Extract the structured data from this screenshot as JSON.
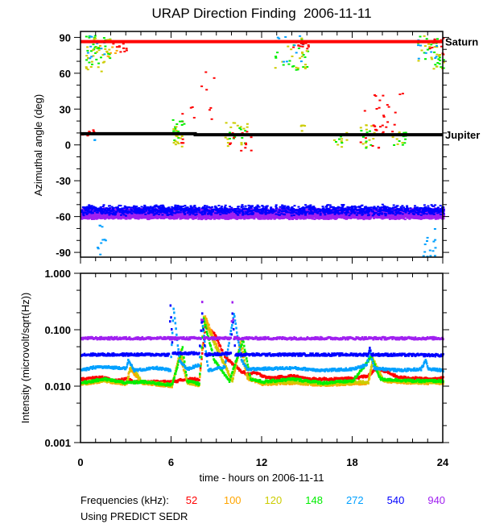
{
  "chart_data": [
    {
      "type": "scatter",
      "title": "URAP Direction Finding  2006-11-11",
      "xlabel": "",
      "ylabel": "Azimuthal angle (deg)",
      "xlim": [
        0,
        24
      ],
      "ylim": [
        -94,
        95
      ],
      "yticks": [
        "90",
        "60",
        "30",
        "0",
        "-30",
        "-60",
        "-90"
      ],
      "ytick_values": [
        90,
        60,
        30,
        0,
        -30,
        -60,
        -90
      ],
      "reference_lines": [
        {
          "name": "Saturn",
          "color": "#ff0000",
          "points": [
            [
              0,
              86.5
            ],
            [
              24,
              86.5
            ]
          ]
        },
        {
          "name": "Jupiter",
          "color": "#000000",
          "points": [
            [
              0,
              9.4
            ],
            [
              7.6,
              9.4
            ],
            [
              7.6,
              8.5
            ],
            [
              24,
              8.5
            ]
          ]
        }
      ],
      "bands": [
        {
          "freq": "940",
          "t": [
            0,
            24
          ],
          "az_center": -57,
          "az_spread": 4,
          "density": 40
        },
        {
          "freq": "540",
          "t": [
            0,
            24
          ],
          "az_center": -54,
          "az_spread": 4,
          "density": 6
        }
      ],
      "clusters": [
        {
          "freq": "148",
          "t": [
            0.3,
            1.9
          ],
          "az": [
            68,
            92
          ],
          "n": 30
        },
        {
          "freq": "120",
          "t": [
            0.3,
            1.9
          ],
          "az": [
            62,
            90
          ],
          "n": 30
        },
        {
          "freq": "272",
          "t": [
            0.4,
            1.6
          ],
          "az": [
            72,
            92
          ],
          "n": 10
        },
        {
          "freq": "100",
          "t": [
            0.8,
            2.8
          ],
          "az": [
            74,
            88
          ],
          "n": 10
        },
        {
          "freq": "52",
          "t": [
            2.0,
            3.0
          ],
          "az": [
            78,
            87
          ],
          "n": 10
        },
        {
          "freq": "52",
          "t": [
            0,
            1.0
          ],
          "az": [
            7,
            14
          ],
          "n": 12
        },
        {
          "freq": "272",
          "t": [
            0.8,
            1.0
          ],
          "az": [
            2,
            6
          ],
          "n": 2
        },
        {
          "freq": "52",
          "t": [
            6.5,
            8.8
          ],
          "az": [
            20,
            62
          ],
          "n": 12
        },
        {
          "freq": "148",
          "t": [
            5.9,
            7.0
          ],
          "az": [
            4,
            22
          ],
          "n": 14
        },
        {
          "freq": "120",
          "t": [
            5.9,
            7.0
          ],
          "az": [
            -2,
            16
          ],
          "n": 16
        },
        {
          "freq": "52",
          "t": [
            6.5,
            7.2
          ],
          "az": [
            0,
            9
          ],
          "n": 4
        },
        {
          "freq": "120",
          "t": [
            9.5,
            11.0
          ],
          "az": [
            -2,
            20
          ],
          "n": 16
        },
        {
          "freq": "148",
          "t": [
            9.5,
            11.0
          ],
          "az": [
            0,
            15
          ],
          "n": 10
        },
        {
          "freq": "52",
          "t": [
            9.8,
            11.3
          ],
          "az": [
            -6,
            12
          ],
          "n": 14
        },
        {
          "freq": "148",
          "t": [
            12.8,
            15.0
          ],
          "az": [
            62,
            92
          ],
          "n": 20
        },
        {
          "freq": "120",
          "t": [
            12.8,
            15.0
          ],
          "az": [
            64,
            92
          ],
          "n": 18
        },
        {
          "freq": "272",
          "t": [
            13.0,
            14.8
          ],
          "az": [
            70,
            93
          ],
          "n": 10
        },
        {
          "freq": "52",
          "t": [
            14.0,
            15.2
          ],
          "az": [
            81,
            88
          ],
          "n": 14
        },
        {
          "freq": "120",
          "t": [
            14.5,
            14.8
          ],
          "az": [
            10,
            18
          ],
          "n": 5
        },
        {
          "freq": "120",
          "t": [
            16.7,
            17.6
          ],
          "az": [
            -2,
            12
          ],
          "n": 10
        },
        {
          "freq": "148",
          "t": [
            16.7,
            17.5
          ],
          "az": [
            2,
            10
          ],
          "n": 5
        },
        {
          "freq": "120",
          "t": [
            18.3,
            19.6
          ],
          "az": [
            -4,
            18
          ],
          "n": 12
        },
        {
          "freq": "148",
          "t": [
            18.3,
            19.4
          ],
          "az": [
            -2,
            14
          ],
          "n": 8
        },
        {
          "freq": "52",
          "t": [
            18.4,
            20.2
          ],
          "az": [
            -2,
            30
          ],
          "n": 16
        },
        {
          "freq": "52",
          "t": [
            19.4,
            21.3
          ],
          "az": [
            8,
            48
          ],
          "n": 20
        },
        {
          "freq": "148",
          "t": [
            20.6,
            21.6
          ],
          "az": [
            0,
            14
          ],
          "n": 10
        },
        {
          "freq": "120",
          "t": [
            20.6,
            21.6
          ],
          "az": [
            0,
            12
          ],
          "n": 6
        },
        {
          "freq": "148",
          "t": [
            22.3,
            24.0
          ],
          "az": [
            62,
            92
          ],
          "n": 24
        },
        {
          "freq": "120",
          "t": [
            22.3,
            24.0
          ],
          "az": [
            64,
            92
          ],
          "n": 18
        },
        {
          "freq": "272",
          "t": [
            22.3,
            23.6
          ],
          "az": [
            72,
            92
          ],
          "n": 12
        },
        {
          "freq": "52",
          "t": [
            23.0,
            24.0
          ],
          "az": [
            76,
            90
          ],
          "n": 10
        },
        {
          "freq": "272",
          "t": [
            0.9,
            1.6
          ],
          "az": [
            -92,
            -65
          ],
          "n": 10
        },
        {
          "freq": "272",
          "t": [
            22.6,
            23.5
          ],
          "az": [
            -93,
            -68
          ],
          "n": 14
        }
      ]
    },
    {
      "type": "line",
      "title": "",
      "xlabel": "time - hours on 2006-11-11",
      "ylabel": "Intensity (microvolt/sqrt(Hz))",
      "xlim": [
        0,
        24
      ],
      "ylim": [
        0.001,
        1.0
      ],
      "yscale": "log",
      "xticks": [
        "0",
        "6",
        "12",
        "18",
        "24"
      ],
      "xtick_values": [
        0,
        6,
        12,
        18,
        24
      ],
      "yticks": [
        "1.000",
        "0.100",
        "0.010",
        "0.001"
      ],
      "ytick_values": [
        1.0,
        0.1,
        0.01,
        0.001
      ],
      "series": [
        {
          "name": "52",
          "points": [
            [
              0,
              0.014
            ],
            [
              1.5,
              0.015
            ],
            [
              2,
              0.013
            ],
            [
              3,
              0.014
            ],
            [
              3.5,
              0.0125
            ],
            [
              6,
              0.0125
            ],
            [
              7,
              0.014
            ],
            [
              7.8,
              0.014
            ],
            [
              8.2,
              0.12
            ],
            [
              8.8,
              0.09
            ],
            [
              9.5,
              0.035
            ],
            [
              10.5,
              0.02
            ],
            [
              11,
              0.017
            ],
            [
              11.5,
              0.018
            ],
            [
              12.5,
              0.0145
            ],
            [
              14,
              0.016
            ],
            [
              15,
              0.014
            ],
            [
              17,
              0.014
            ],
            [
              18,
              0.0145
            ],
            [
              19,
              0.016
            ],
            [
              19.5,
              0.021
            ],
            [
              20,
              0.02
            ],
            [
              21,
              0.015
            ],
            [
              23,
              0.014
            ],
            [
              24,
              0.0145
            ]
          ]
        },
        {
          "name": "100",
          "points": [
            [
              0,
              0.0115
            ],
            [
              1.5,
              0.013
            ],
            [
              3,
              0.0115
            ],
            [
              3.2,
              0.022
            ],
            [
              4,
              0.012
            ],
            [
              6,
              0.0105
            ],
            [
              6.5,
              0.04
            ],
            [
              7,
              0.012
            ],
            [
              7.8,
              0.011
            ],
            [
              8.2,
              0.18
            ],
            [
              9,
              0.05
            ],
            [
              10,
              0.0125
            ],
            [
              10.5,
              0.06
            ],
            [
              11,
              0.014
            ],
            [
              12,
              0.0115
            ],
            [
              14,
              0.012
            ],
            [
              16,
              0.011
            ],
            [
              19,
              0.012
            ],
            [
              19.3,
              0.03
            ],
            [
              20,
              0.013
            ],
            [
              22,
              0.012
            ],
            [
              24,
              0.012
            ]
          ]
        },
        {
          "name": "120",
          "points": [
            [
              0,
              0.012
            ],
            [
              1.5,
              0.0135
            ],
            [
              3,
              0.012
            ],
            [
              3.3,
              0.024
            ],
            [
              4,
              0.0125
            ],
            [
              6,
              0.011
            ],
            [
              6.6,
              0.045
            ],
            [
              7,
              0.012
            ],
            [
              7.8,
              0.011
            ],
            [
              8.1,
              0.17
            ],
            [
              9,
              0.045
            ],
            [
              10,
              0.013
            ],
            [
              10.6,
              0.065
            ],
            [
              11,
              0.015
            ],
            [
              12,
              0.012
            ],
            [
              14,
              0.0125
            ],
            [
              16,
              0.0115
            ],
            [
              19,
              0.0125
            ],
            [
              19.3,
              0.032
            ],
            [
              20,
              0.0135
            ],
            [
              22,
              0.0125
            ],
            [
              24,
              0.0125
            ]
          ]
        },
        {
          "name": "148",
          "points": [
            [
              0,
              0.012
            ],
            [
              1.5,
              0.014
            ],
            [
              3,
              0.012
            ],
            [
              4,
              0.0125
            ],
            [
              6,
              0.011
            ],
            [
              6.7,
              0.05
            ],
            [
              7,
              0.013
            ],
            [
              7.8,
              0.0115
            ],
            [
              8.1,
              0.16
            ],
            [
              8.8,
              0.03
            ],
            [
              9.8,
              0.013
            ],
            [
              10.7,
              0.07
            ],
            [
              11.2,
              0.014
            ],
            [
              12,
              0.0125
            ],
            [
              14,
              0.014
            ],
            [
              16,
              0.012
            ],
            [
              18,
              0.013
            ],
            [
              19.2,
              0.035
            ],
            [
              19.8,
              0.014
            ],
            [
              22,
              0.013
            ],
            [
              24,
              0.013
            ]
          ]
        },
        {
          "name": "272",
          "points": [
            [
              0,
              0.02
            ],
            [
              1,
              0.023
            ],
            [
              3,
              0.022
            ],
            [
              3.1,
              0.03
            ],
            [
              3.5,
              0.02
            ],
            [
              5,
              0.022
            ],
            [
              5.9,
              0.02
            ],
            [
              6.1,
              0.25
            ],
            [
              6.5,
              0.03
            ],
            [
              7,
              0.021
            ],
            [
              7.8,
              0.025
            ],
            [
              8,
              0.15
            ],
            [
              8.4,
              0.02
            ],
            [
              9.5,
              0.023
            ],
            [
              10.1,
              0.2
            ],
            [
              10.6,
              0.03
            ],
            [
              11,
              0.021
            ],
            [
              14,
              0.022
            ],
            [
              16,
              0.02
            ],
            [
              18,
              0.021
            ],
            [
              18.9,
              0.025
            ],
            [
              19.1,
              0.045
            ],
            [
              19.4,
              0.022
            ],
            [
              21,
              0.02
            ],
            [
              22.5,
              0.021
            ],
            [
              22.8,
              0.03
            ],
            [
              23,
              0.021
            ],
            [
              24,
              0.02
            ]
          ]
        },
        {
          "name": "540",
          "points": [
            [
              0,
              0.038
            ],
            [
              5.8,
              0.038
            ],
            [
              5.9,
              0.28
            ],
            [
              6.05,
              0.04
            ],
            [
              7.8,
              0.04
            ],
            [
              8,
              0.2
            ],
            [
              8.2,
              0.038
            ],
            [
              9.9,
              0.04
            ],
            [
              10,
              0.2
            ],
            [
              10.2,
              0.038
            ],
            [
              19,
              0.038
            ],
            [
              19.1,
              0.05
            ],
            [
              19.2,
              0.038
            ],
            [
              24,
              0.037
            ]
          ]
        },
        {
          "name": "940",
          "points": [
            [
              0,
              0.074
            ],
            [
              7.9,
              0.074
            ],
            [
              8,
              0.33
            ],
            [
              8.1,
              0.074
            ],
            [
              9.9,
              0.074
            ],
            [
              10,
              0.32
            ],
            [
              10.1,
              0.074
            ],
            [
              24,
              0.074
            ]
          ]
        }
      ]
    }
  ],
  "legend": {
    "label": "Frequencies (kHz):",
    "items": [
      {
        "name": "52",
        "color": "#ff0000"
      },
      {
        "name": "100",
        "color": "#ffa500"
      },
      {
        "name": "120",
        "color": "#cccc00"
      },
      {
        "name": "148",
        "color": "#00ee00"
      },
      {
        "name": "272",
        "color": "#00a0ff"
      },
      {
        "name": "540",
        "color": "#0000ff"
      },
      {
        "name": "940",
        "color": "#a020f0"
      }
    ]
  },
  "footer": "Using PREDICT SEDR"
}
